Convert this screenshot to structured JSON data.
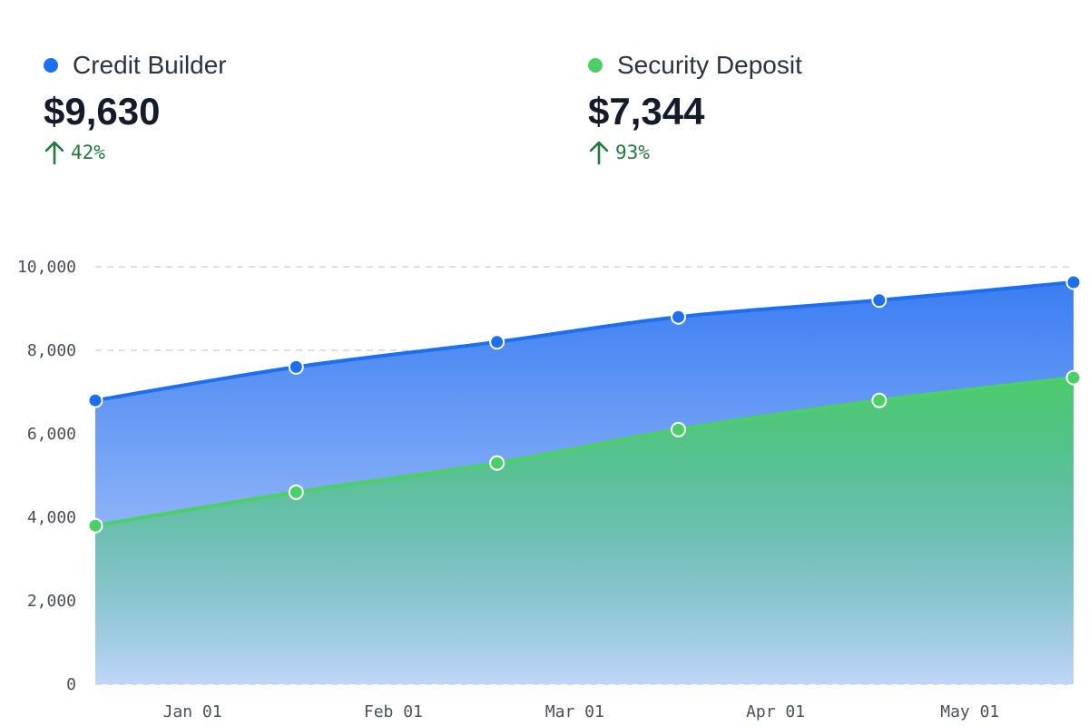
{
  "summary": [
    {
      "name": "Credit Builder",
      "value": "$9,630",
      "change": "42%",
      "color": "#1e6ff0"
    },
    {
      "name": "Security Deposit",
      "value": "$7,344",
      "change": "93%",
      "color": "#4ccf66"
    }
  ],
  "chart_data": {
    "type": "area",
    "x": [
      "2022-12-17",
      "2023-01-17",
      "2023-02-17",
      "2023-03-17",
      "2023-04-17",
      "2023-05-17"
    ],
    "x_ticks": [
      "Jan 01",
      "Feb 01",
      "Mar 01",
      "Apr 01",
      "May 01"
    ],
    "y_ticks": [
      "0",
      "2,000",
      "4,000",
      "6,000",
      "8,000",
      "10,000"
    ],
    "ylim": [
      0,
      10000
    ],
    "grid": true,
    "series": [
      {
        "name": "Credit Builder",
        "color": "#1e6ff0",
        "values": [
          6800,
          7600,
          8200,
          8800,
          9200,
          9630
        ]
      },
      {
        "name": "Security Deposit",
        "color": "#4ccf66",
        "values": [
          3800,
          4600,
          5300,
          6100,
          6800,
          7344
        ]
      }
    ]
  }
}
